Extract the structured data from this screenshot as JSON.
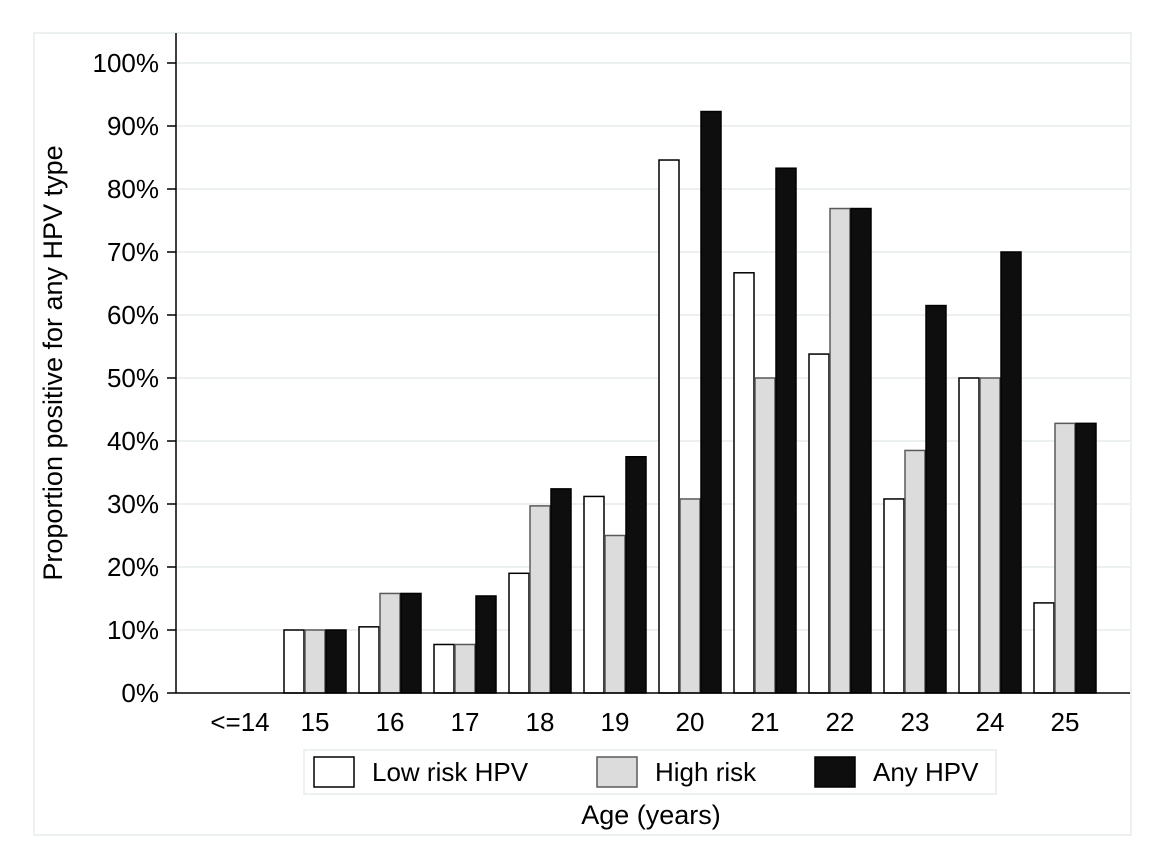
{
  "chart_data": {
    "type": "bar",
    "xlabel": "Age (years)",
    "ylabel": "Proportion positive for any HPV type",
    "ylim": [
      0,
      100
    ],
    "yticks": [
      "0%",
      "10%",
      "20%",
      "30%",
      "40%",
      "50%",
      "60%",
      "70%",
      "80%",
      "90%",
      "100%"
    ],
    "categories": [
      "<=14",
      "15",
      "16",
      "17",
      "18",
      "19",
      "20",
      "21",
      "22",
      "23",
      "24",
      "25"
    ],
    "series": [
      {
        "name": "Low risk HPV",
        "color": "#ffffff",
        "values": [
          0,
          10,
          10.5,
          7.7,
          19,
          31.2,
          84.6,
          66.7,
          53.8,
          30.8,
          50,
          14.3
        ]
      },
      {
        "name": "High risk",
        "color": "#dcdcdc",
        "values": [
          0,
          10,
          15.8,
          7.7,
          29.7,
          25,
          30.8,
          50,
          76.9,
          38.5,
          50,
          42.8
        ]
      },
      {
        "name": "Any HPV",
        "color": "#0e0e0e",
        "values": [
          0,
          10,
          15.8,
          15.4,
          32.4,
          37.5,
          92.3,
          83.3,
          76.9,
          61.5,
          70,
          42.8
        ]
      }
    ],
    "grid": true,
    "legend_position": "bottom"
  }
}
